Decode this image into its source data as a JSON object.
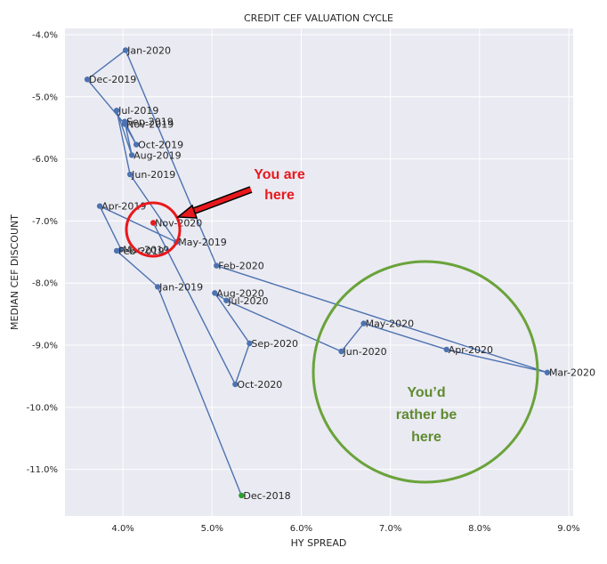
{
  "chart_data": {
    "type": "line",
    "title": "CREDIT CEF VALUATION CYCLE",
    "xlabel": "HY SPREAD",
    "ylabel": "MEDIAN CEF DISCOUNT",
    "xlim": [
      3.35,
      9.05
    ],
    "ylim": [
      -11.75,
      -3.9
    ],
    "x_ticks": [
      4.0,
      5.0,
      6.0,
      7.0,
      8.0,
      9.0
    ],
    "x_tick_labels": [
      "4.0%",
      "5.0%",
      "6.0%",
      "7.0%",
      "8.0%",
      "9.0%"
    ],
    "y_ticks": [
      -4.0,
      -5.0,
      -6.0,
      -7.0,
      -8.0,
      -9.0,
      -10.0,
      -11.0
    ],
    "y_tick_labels": [
      "-4.0%",
      "-5.0%",
      "-6.0%",
      "-7.0%",
      "-8.0%",
      "-9.0%",
      "-10.0%",
      "-11.0%"
    ],
    "grid": true,
    "series_color": "#4c72b0",
    "start_color": "#2ca02c",
    "current_color": "#e8191c",
    "points": [
      {
        "label": "Dec-2018",
        "x": 5.33,
        "y": -11.42
      },
      {
        "label": "Jan-2019",
        "x": 4.39,
        "y": -8.06
      },
      {
        "label": "Feb-2019",
        "x": 3.93,
        "y": -7.48
      },
      {
        "label": "Mar-2019",
        "x": 3.98,
        "y": -7.46
      },
      {
        "label": "Apr-2019",
        "x": 3.74,
        "y": -6.76
      },
      {
        "label": "May-2019",
        "x": 4.6,
        "y": -7.34
      },
      {
        "label": "Jun-2019",
        "x": 4.08,
        "y": -6.25
      },
      {
        "label": "Jul-2019",
        "x": 3.93,
        "y": -5.22
      },
      {
        "label": "Aug-2019",
        "x": 4.1,
        "y": -5.94
      },
      {
        "label": "Sep-2019",
        "x": 4.02,
        "y": -5.4
      },
      {
        "label": "Oct-2019",
        "x": 4.15,
        "y": -5.77
      },
      {
        "label": "Nov-2019",
        "x": 4.02,
        "y": -5.44
      },
      {
        "label": "Dec-2019",
        "x": 3.6,
        "y": -4.72
      },
      {
        "label": "Jan-2020",
        "x": 4.03,
        "y": -4.25
      },
      {
        "label": "Feb-2020",
        "x": 5.05,
        "y": -7.72
      },
      {
        "label": "Mar-2020",
        "x": 8.76,
        "y": -9.44
      },
      {
        "label": "Apr-2020",
        "x": 7.63,
        "y": -9.07
      },
      {
        "label": "May-2020",
        "x": 6.7,
        "y": -8.65
      },
      {
        "label": "Jun-2020",
        "x": 6.45,
        "y": -9.1
      },
      {
        "label": "Jul-2020",
        "x": 5.16,
        "y": -8.28
      },
      {
        "label": "Aug-2020",
        "x": 5.03,
        "y": -8.16
      },
      {
        "label": "Sep-2020",
        "x": 5.42,
        "y": -8.97
      },
      {
        "label": "Oct-2020",
        "x": 5.26,
        "y": -9.63
      },
      {
        "label": "Nov-2020",
        "x": 4.34,
        "y": -7.03
      }
    ],
    "annotations": {
      "you_are_here": [
        "You are",
        "here"
      ],
      "youd_rather_be_here": [
        "You’d",
        "rather be",
        "here"
      ]
    }
  }
}
